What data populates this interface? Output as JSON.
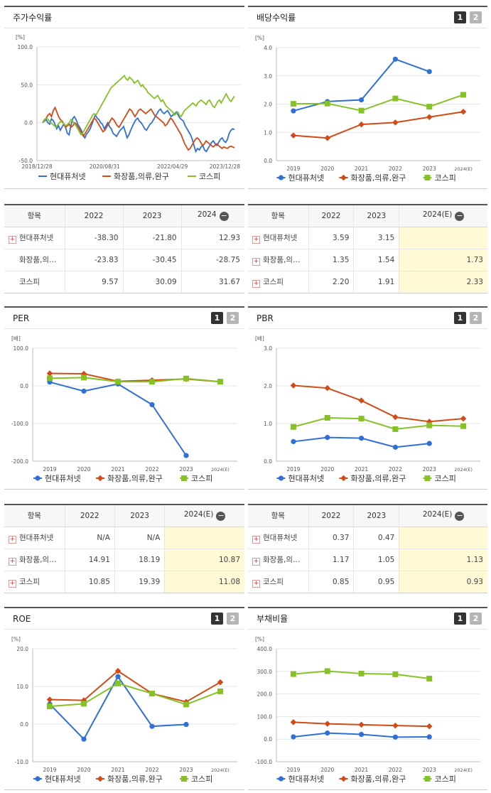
{
  "legend": [
    "현대퓨처넷",
    "화장품,의류,완구",
    "코스피"
  ],
  "colors": {
    "s1": "#2f6fd6",
    "s2": "#d24a16",
    "s3": "#86c227"
  },
  "pager": [
    "1",
    "2"
  ],
  "tables": {
    "header_item": "항목",
    "stock": {
      "cols": [
        "2022",
        "2023",
        "2024"
      ],
      "rows": [
        {
          "name": "현대퓨처넷",
          "plus": true,
          "vals": [
            "-38.30",
            "-21.80",
            "12.93"
          ]
        },
        {
          "name": "화장품,의…",
          "plus": false,
          "vals": [
            "-23.83",
            "-30.45",
            "-28.75"
          ]
        },
        {
          "name": "코스피",
          "plus": false,
          "vals": [
            "9.57",
            "30.09",
            "31.67"
          ]
        }
      ]
    },
    "div": {
      "cols": [
        "2022",
        "2023",
        "2024(E)"
      ],
      "rows": [
        {
          "name": "현대퓨처넷",
          "plus": true,
          "vals": [
            "3.59",
            "3.15",
            ""
          ]
        },
        {
          "name": "화장품,의…",
          "plus": true,
          "vals": [
            "1.35",
            "1.54",
            "1.73"
          ]
        },
        {
          "name": "코스피",
          "plus": true,
          "vals": [
            "2.20",
            "1.91",
            "2.33"
          ]
        }
      ]
    },
    "per": {
      "cols": [
        "2022",
        "2023",
        "2024(E)"
      ],
      "rows": [
        {
          "name": "현대퓨처넷",
          "plus": true,
          "vals": [
            "N/A",
            "N/A",
            ""
          ]
        },
        {
          "name": "화장품,의…",
          "plus": true,
          "vals": [
            "14.91",
            "18.19",
            "10.87"
          ]
        },
        {
          "name": "코스피",
          "plus": true,
          "vals": [
            "10.85",
            "19.39",
            "11.08"
          ]
        }
      ]
    },
    "pbr": {
      "cols": [
        "2022",
        "2023",
        "2024(E)"
      ],
      "rows": [
        {
          "name": "현대퓨처넷",
          "plus": true,
          "vals": [
            "0.37",
            "0.47",
            ""
          ]
        },
        {
          "name": "화장품,의…",
          "plus": true,
          "vals": [
            "1.17",
            "1.05",
            "1.13"
          ]
        },
        {
          "name": "코스피",
          "plus": true,
          "vals": [
            "0.85",
            "0.95",
            "0.93"
          ]
        }
      ]
    }
  },
  "chart_data": [
    {
      "id": "stock",
      "type": "line",
      "title": "주가수익률",
      "unit": "[%]",
      "ylim": [
        -50,
        100
      ],
      "yticks": [
        "-50.0",
        "0.0",
        "50.0",
        "100.0"
      ],
      "xticks": [
        "2018/12/28",
        "2020/08/31",
        "2022/04/29",
        "2023/12/28"
      ],
      "series": [
        {
          "name": "현대퓨처넷",
          "values": [
            0,
            2,
            4,
            0,
            -2,
            5,
            3,
            -2,
            -8,
            -4,
            -10,
            -6,
            -2,
            -6,
            -14,
            -16,
            -5,
            5,
            8,
            4,
            -2,
            -6,
            -10,
            -16,
            -20,
            -15,
            -12,
            -8,
            -2,
            5,
            10,
            6,
            4,
            0,
            -2,
            -8,
            -4,
            0,
            -5,
            -8,
            -14,
            -16,
            -18,
            -14,
            -10,
            -8,
            -5,
            -12,
            -20,
            -16,
            -10,
            -5,
            0,
            4,
            6,
            2,
            0,
            -4,
            -8,
            -10,
            -6,
            -2,
            0,
            4,
            8,
            12,
            16,
            18,
            14,
            12,
            14,
            16,
            12,
            8,
            10,
            12,
            14,
            10,
            6,
            4,
            2,
            -4,
            -8,
            -12,
            -16,
            -22,
            -30,
            -38,
            -34,
            -36,
            -32,
            -30,
            -36,
            -38,
            -34,
            -30,
            -26,
            -24,
            -28,
            -30,
            -26,
            -22,
            -20,
            -24,
            -26,
            -22,
            -14,
            -10,
            -8,
            -9
          ]
        },
        {
          "name": "화장품,의류,완구",
          "values": [
            0,
            4,
            6,
            10,
            12,
            8,
            16,
            20,
            14,
            8,
            4,
            2,
            -2,
            -6,
            -4,
            -2,
            -6,
            -4,
            0,
            -2,
            -6,
            -10,
            -14,
            -18,
            -14,
            -10,
            -6,
            -2,
            2,
            6,
            4,
            0,
            -4,
            -8,
            -12,
            -10,
            -6,
            -2,
            2,
            6,
            4,
            0,
            -4,
            -6,
            -2,
            2,
            6,
            10,
            14,
            18,
            16,
            12,
            8,
            12,
            16,
            18,
            16,
            14,
            12,
            14,
            16,
            18,
            14,
            10,
            8,
            6,
            4,
            2,
            0,
            -4,
            -2,
            2,
            6,
            4,
            0,
            -4,
            -8,
            -12,
            -16,
            -22,
            -28,
            -32,
            -36,
            -34,
            -30,
            -26,
            -22,
            -20,
            -22,
            -26,
            -30,
            -28,
            -24,
            -26,
            -28,
            -30,
            -32,
            -30,
            -28,
            -30,
            -32,
            -34,
            -32,
            -33,
            -34,
            -32,
            -31,
            -32,
            -33
          ]
        },
        {
          "name": "코스피",
          "values": [
            0,
            3,
            6,
            5,
            2,
            0,
            -2,
            -4,
            -6,
            -3,
            0,
            2,
            0,
            -2,
            -4,
            -2,
            0,
            4,
            2,
            -2,
            -4,
            -8,
            -12,
            -16,
            -14,
            -10,
            -6,
            -2,
            2,
            6,
            10,
            12,
            10,
            14,
            18,
            22,
            26,
            30,
            34,
            38,
            42,
            46,
            48,
            50,
            52,
            54,
            56,
            58,
            60,
            62,
            58,
            56,
            60,
            58,
            56,
            52,
            54,
            56,
            52,
            48,
            50,
            46,
            44,
            40,
            38,
            36,
            34,
            32,
            34,
            36,
            32,
            28,
            30,
            26,
            22,
            20,
            18,
            16,
            14,
            10,
            12,
            14,
            10,
            8,
            12,
            16,
            18,
            20,
            22,
            24,
            26,
            24,
            22,
            26,
            28,
            30,
            28,
            26,
            24,
            28,
            30,
            26,
            22,
            20,
            24,
            28,
            30,
            26,
            30,
            34,
            38,
            34,
            30,
            28,
            32,
            35
          ]
        }
      ]
    },
    {
      "id": "div",
      "type": "line",
      "title": "배당수익률",
      "unit": "[%]",
      "ylim": [
        0,
        4
      ],
      "yticks": [
        "0.0",
        "1.0",
        "2.0",
        "3.0",
        "4.0"
      ],
      "categories": [
        "2019",
        "2020",
        "2021",
        "2022",
        "2023",
        "2024(E)"
      ],
      "series": [
        {
          "name": "현대퓨처넷",
          "values": [
            1.76,
            2.09,
            2.15,
            3.59,
            3.15,
            null
          ]
        },
        {
          "name": "화장품,의류,완구",
          "values": [
            0.89,
            0.8,
            1.28,
            1.35,
            1.54,
            1.73
          ]
        },
        {
          "name": "코스피",
          "values": [
            2.01,
            2.02,
            1.77,
            2.2,
            1.91,
            2.33
          ]
        }
      ]
    },
    {
      "id": "per",
      "type": "line",
      "title": "PER",
      "unit": "[배]",
      "ylim": [
        -200,
        100
      ],
      "yticks": [
        "-200.0",
        "-100.0",
        "0.0",
        "100.0"
      ],
      "categories": [
        "2019",
        "2020",
        "2021",
        "2022",
        "2023",
        "2024(E)"
      ],
      "series": [
        {
          "name": "현대퓨처넷",
          "values": [
            10.0,
            -14.0,
            5.0,
            -50.0,
            -185.0,
            null
          ]
        },
        {
          "name": "화장품,의류,완구",
          "values": [
            33.0,
            32.0,
            12.0,
            14.91,
            18.19,
            10.87
          ]
        },
        {
          "name": "코스피",
          "values": [
            20.0,
            22.0,
            11.0,
            10.85,
            19.39,
            11.08
          ]
        }
      ]
    },
    {
      "id": "pbr",
      "type": "line",
      "title": "PBR",
      "unit": "[배]",
      "ylim": [
        0,
        3
      ],
      "yticks": [
        "0.0",
        "1.0",
        "2.0",
        "3.0"
      ],
      "categories": [
        "2019",
        "2020",
        "2021",
        "2022",
        "2023",
        "2024(E)"
      ],
      "series": [
        {
          "name": "현대퓨처넷",
          "values": [
            0.52,
            0.63,
            0.61,
            0.37,
            0.47,
            null
          ]
        },
        {
          "name": "화장품,의류,완구",
          "values": [
            2.01,
            1.94,
            1.61,
            1.17,
            1.05,
            1.13
          ]
        },
        {
          "name": "코스피",
          "values": [
            0.91,
            1.15,
            1.13,
            0.85,
            0.95,
            0.93
          ]
        }
      ]
    },
    {
      "id": "roe",
      "type": "line",
      "title": "ROE",
      "unit": "[%]",
      "ylim": [
        -10,
        20
      ],
      "yticks": [
        "-10.0",
        "0.0",
        "10.0",
        "20.0"
      ],
      "categories": [
        "2019",
        "2020",
        "2021",
        "2022",
        "2023",
        "2024(E)"
      ],
      "series": [
        {
          "name": "현대퓨처넷",
          "values": [
            5.3,
            -4.0,
            12.6,
            -0.6,
            -0.1,
            null
          ]
        },
        {
          "name": "화장품,의류,완구",
          "values": [
            6.5,
            6.3,
            14.1,
            8.1,
            5.9,
            11.1
          ]
        },
        {
          "name": "코스피",
          "values": [
            4.7,
            5.4,
            10.8,
            8.1,
            5.2,
            8.7
          ]
        }
      ]
    },
    {
      "id": "debt",
      "type": "line",
      "title": "부채비율",
      "unit": "[%]",
      "ylim": [
        -100,
        400
      ],
      "yticks": [
        "-100.0",
        "0.0",
        "100.0",
        "200.0",
        "300.0",
        "400.0"
      ],
      "categories": [
        "2019",
        "2020",
        "2021",
        "2022",
        "2023",
        "2024(E)"
      ],
      "series": [
        {
          "name": "현대퓨처넷",
          "values": [
            10,
            27,
            21,
            9,
            10,
            null
          ]
        },
        {
          "name": "화장품,의류,완구",
          "values": [
            75,
            68,
            64,
            60,
            57,
            null
          ]
        },
        {
          "name": "코스피",
          "values": [
            288,
            301,
            290,
            287,
            268,
            null
          ]
        }
      ]
    }
  ]
}
